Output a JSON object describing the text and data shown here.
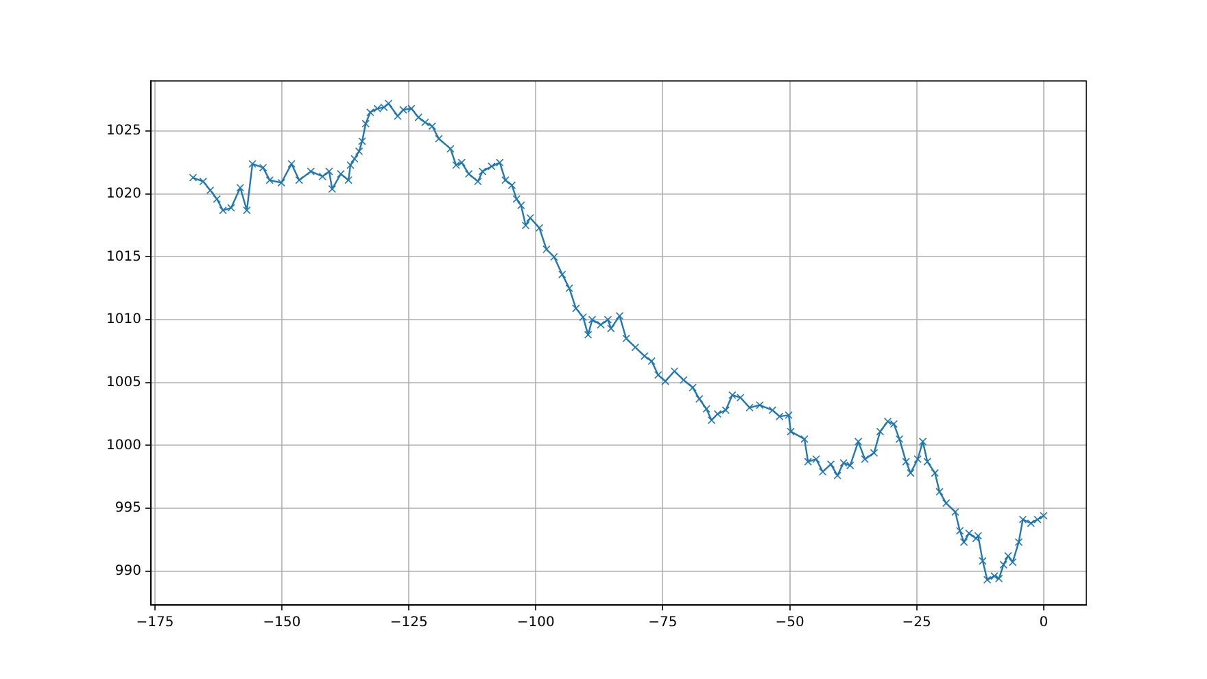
{
  "chart_data": {
    "type": "line",
    "xlim": [
      -175.8,
      8.4
    ],
    "ylim": [
      987.3,
      1029.0
    ],
    "xticks": [
      {
        "value": -175,
        "label": "−175"
      },
      {
        "value": -150,
        "label": "−150"
      },
      {
        "value": -125,
        "label": "−125"
      },
      {
        "value": -100,
        "label": "−100"
      },
      {
        "value": -75,
        "label": "−75"
      },
      {
        "value": -50,
        "label": "−50"
      },
      {
        "value": -25,
        "label": "−25"
      },
      0
    ],
    "yticks": [
      990,
      995,
      1000,
      1005,
      1010,
      1015,
      1020,
      1025
    ],
    "grid": true,
    "marker": "cross",
    "line_style": "solid",
    "series": [
      {
        "color": "#1f77b4",
        "x": [
          -167.5,
          -165.5,
          -164.1,
          -162.8,
          -161.6,
          -160.0,
          -158.2,
          -156.9,
          -155.8,
          -153.7,
          -152.4,
          -150.1,
          -148.1,
          -146.6,
          -144.3,
          -142.0,
          -140.7,
          -140.1,
          -138.4,
          -136.9,
          -136.5,
          -135.7,
          -134.8,
          -134.2,
          -133.5,
          -132.6,
          -131.2,
          -129.9,
          -129.0,
          -127.2,
          -126.1,
          -124.5,
          -123.1,
          -121.8,
          -120.4,
          -119.1,
          -116.8,
          -115.7,
          -114.6,
          -113.2,
          -111.4,
          -110.5,
          -108.7,
          -107.1,
          -106.0,
          -104.7,
          -103.8,
          -102.9,
          -102.0,
          -101.1,
          -99.3,
          -97.9,
          -96.4,
          -94.8,
          -93.4,
          -92.1,
          -90.7,
          -89.7,
          -88.9,
          -87.2,
          -85.8,
          -85.2,
          -83.5,
          -82.2,
          -80.4,
          -78.6,
          -77.2,
          -75.9,
          -74.5,
          -72.7,
          -70.9,
          -69.1,
          -67.8,
          -66.4,
          -65.4,
          -64.2,
          -62.6,
          -61.3,
          -59.7,
          -57.9,
          -55.9,
          -53.4,
          -52.0,
          -50.2,
          -49.8,
          -47.1,
          -46.4,
          -44.8,
          -43.5,
          -41.9,
          -40.6,
          -39.4,
          -38.1,
          -36.5,
          -35.2,
          -33.4,
          -32.2,
          -30.7,
          -29.5,
          -28.4,
          -27.1,
          -26.2,
          -24.8,
          -23.8,
          -22.9,
          -21.4,
          -20.5,
          -19.2,
          -17.4,
          -16.5,
          -15.7,
          -14.7,
          -13.3,
          -12.9,
          -12.0,
          -11.1,
          -9.7,
          -8.8,
          -7.9,
          -7.0,
          -6.1,
          -4.9,
          -4.1,
          -2.5,
          -1.2,
          0
        ],
        "values": [
          1021.3,
          1021.0,
          1020.3,
          1019.6,
          1018.7,
          1018.9,
          1020.5,
          1018.7,
          1022.4,
          1022.1,
          1021.1,
          1020.9,
          1022.4,
          1021.1,
          1021.8,
          1021.4,
          1021.8,
          1020.4,
          1021.6,
          1021.1,
          1022.3,
          1022.8,
          1023.4,
          1024.2,
          1025.6,
          1026.5,
          1026.8,
          1026.9,
          1027.2,
          1026.2,
          1026.7,
          1026.8,
          1026.1,
          1025.7,
          1025.4,
          1024.4,
          1023.6,
          1022.3,
          1022.5,
          1021.6,
          1021.0,
          1021.8,
          1022.2,
          1022.5,
          1021.1,
          1020.7,
          1019.6,
          1019.1,
          1017.5,
          1018.1,
          1017.3,
          1015.6,
          1015.0,
          1013.6,
          1012.5,
          1010.9,
          1010.2,
          1008.8,
          1010.0,
          1009.6,
          1010.0,
          1009.3,
          1010.3,
          1008.5,
          1007.8,
          1007.1,
          1006.7,
          1005.6,
          1005.1,
          1005.9,
          1005.2,
          1004.6,
          1003.7,
          1002.9,
          1002.0,
          1002.5,
          1002.8,
          1004.0,
          1003.8,
          1003.0,
          1003.2,
          1002.8,
          1002.3,
          1002.4,
          1001.1,
          1000.5,
          998.7,
          998.9,
          997.9,
          998.5,
          997.6,
          998.6,
          998.4,
          1000.3,
          998.9,
          999.4,
          1001.1,
          1001.9,
          1001.7,
          1000.5,
          998.7,
          997.8,
          998.9,
          1000.3,
          998.7,
          997.8,
          996.3,
          995.4,
          994.7,
          993.2,
          992.3,
          993.0,
          992.6,
          992.8,
          990.8,
          989.3,
          989.6,
          989.4,
          990.5,
          991.2,
          990.7,
          992.3,
          994.1,
          993.8,
          994.1,
          994.4
        ]
      }
    ]
  }
}
